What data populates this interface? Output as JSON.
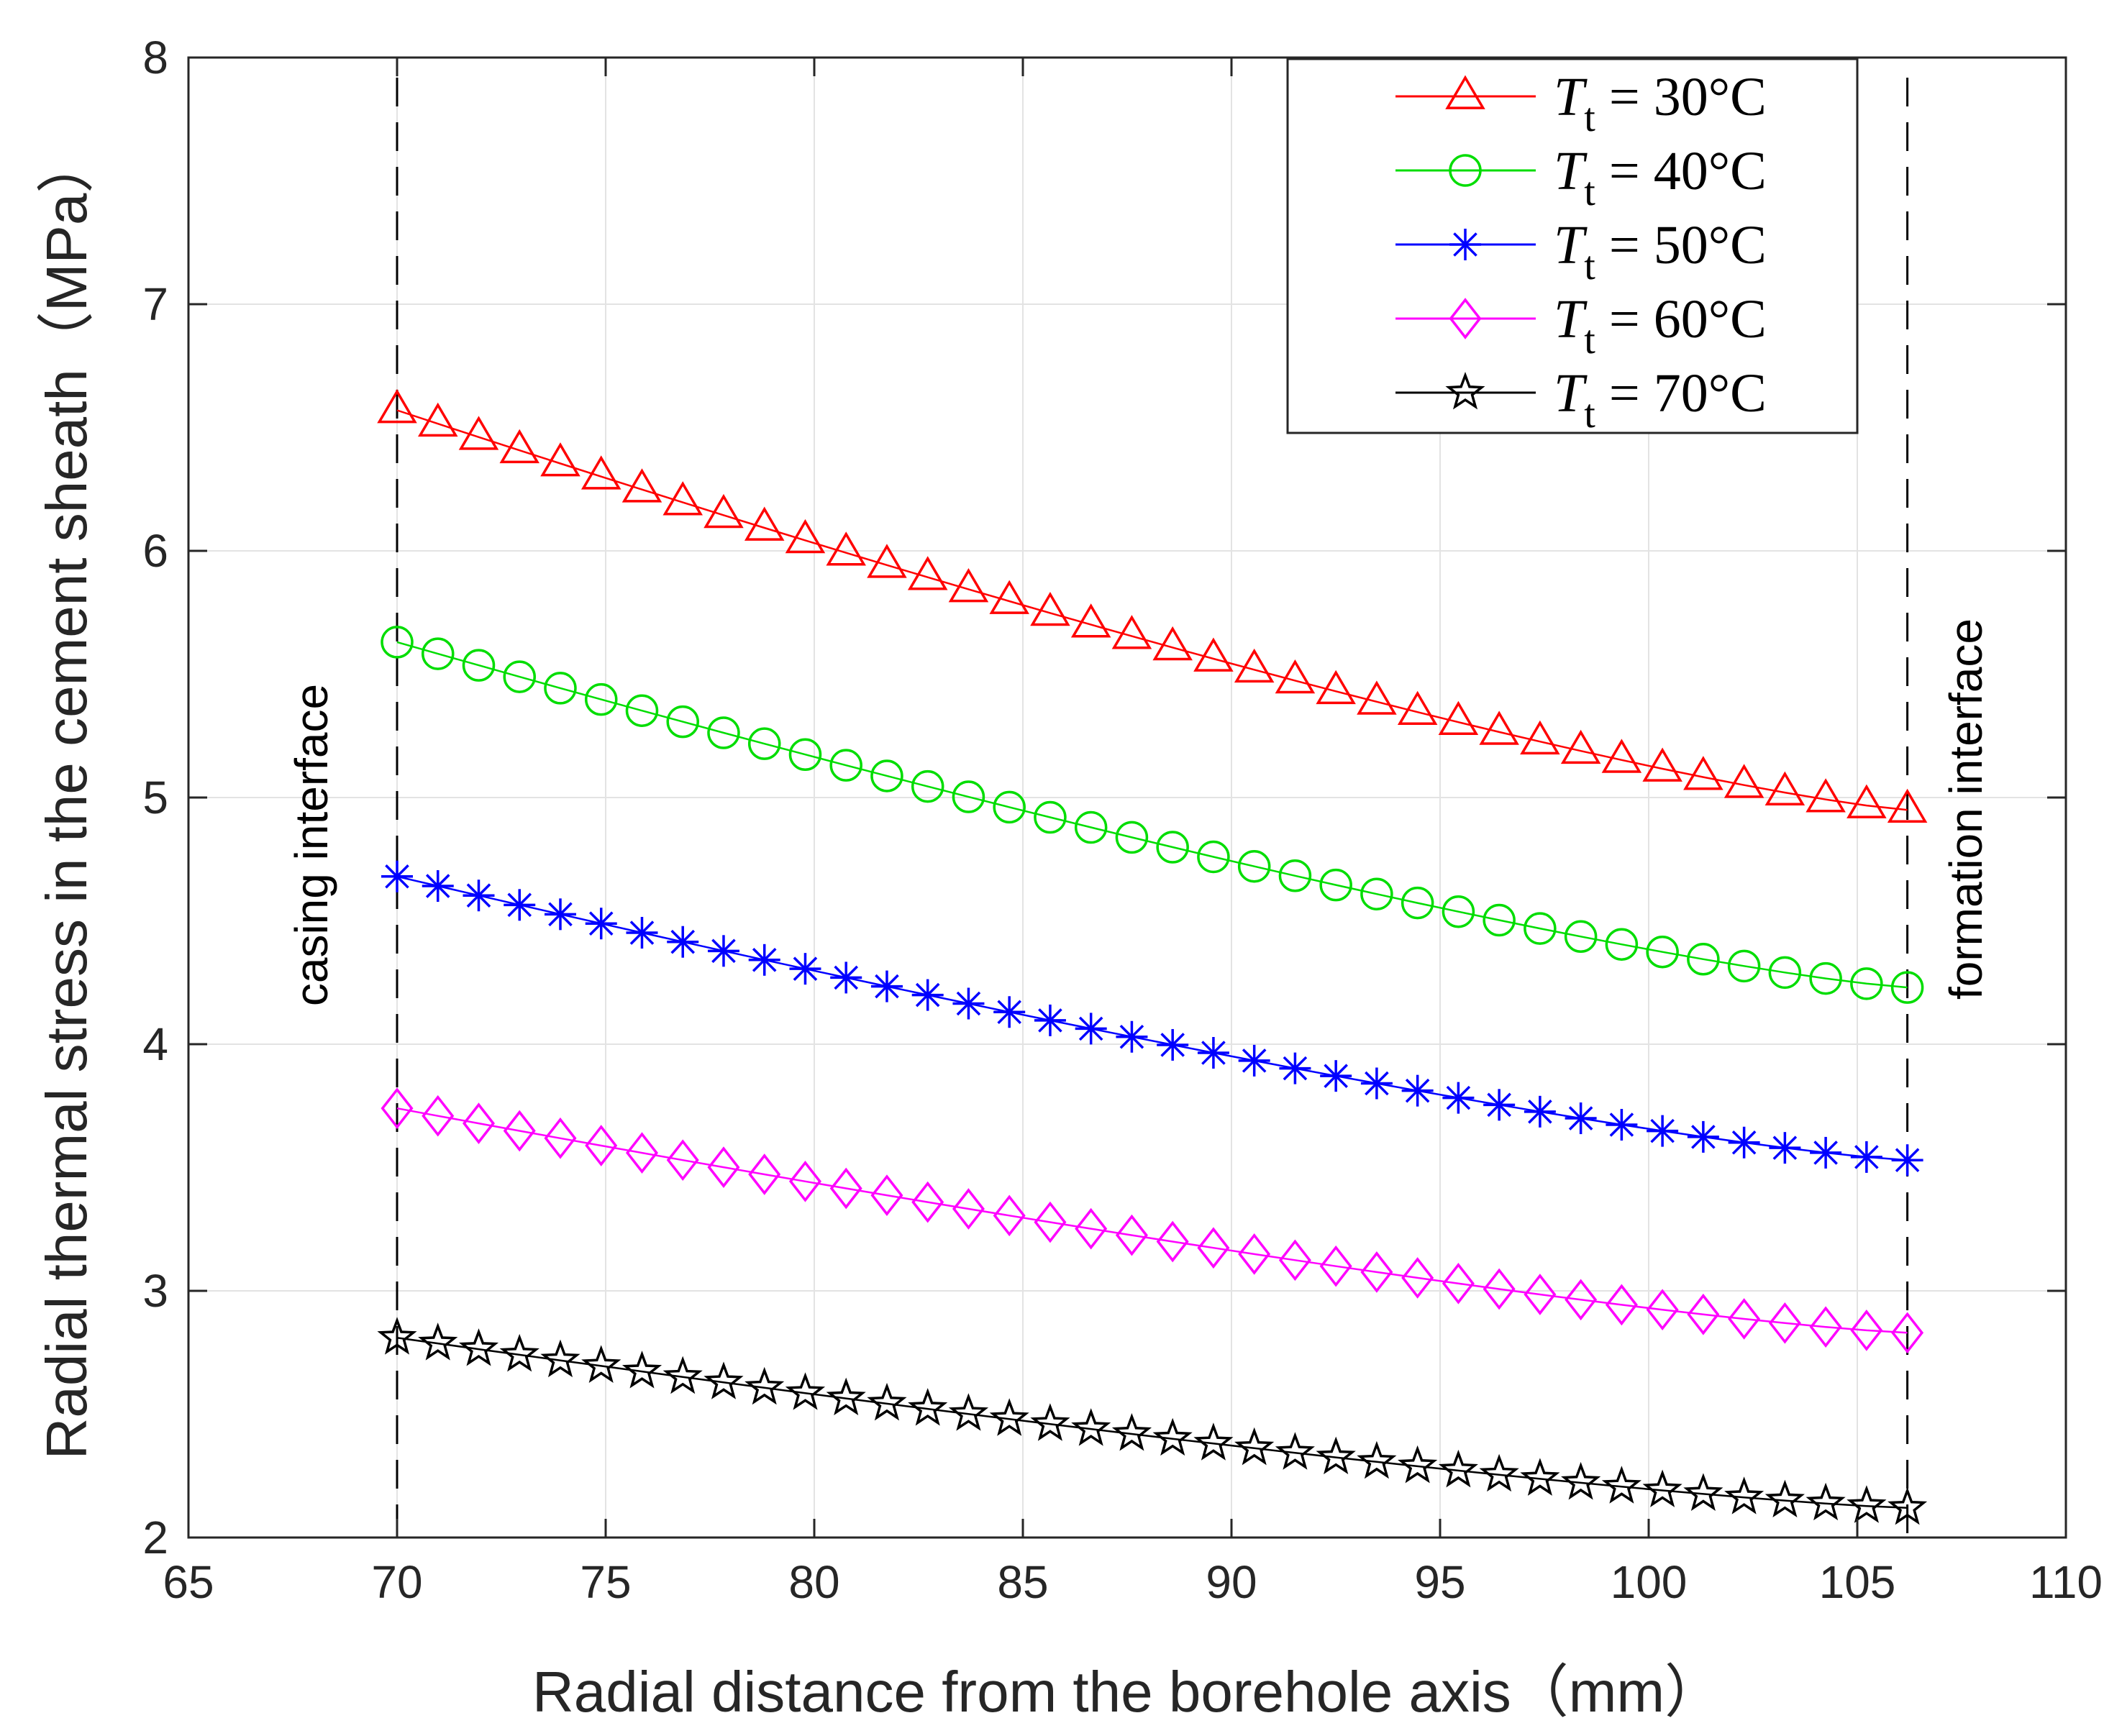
{
  "chart_data": {
    "type": "line",
    "title": "",
    "xlabel": "Radial distance from the borehole axis（mm）",
    "ylabel": "Radial thermal stress in the cement sheath（MPa）",
    "xlim": [
      65,
      110
    ],
    "ylim": [
      2,
      8
    ],
    "xticks": [
      65,
      70,
      75,
      80,
      85,
      90,
      95,
      100,
      105,
      110
    ],
    "yticks": [
      2,
      3,
      4,
      5,
      6,
      7,
      8
    ],
    "xtick_labels": [
      "65",
      "70",
      "75",
      "80",
      "85",
      "90",
      "95",
      "100",
      "105",
      "110"
    ],
    "ytick_labels": [
      "2",
      "3",
      "4",
      "5",
      "6",
      "7",
      "8"
    ],
    "grid": true,
    "legend_position": "top-right",
    "x_start": 70,
    "x_end": 106.2,
    "n_points": 38,
    "series": [
      {
        "name": "T_t = 30°C",
        "legend_var": "T",
        "legend_sub": "t",
        "legend_rest": " = 30°C",
        "color": "#ff0000",
        "marker": "triangle",
        "start": 6.57,
        "end": 4.95
      },
      {
        "name": "T_t = 40°C",
        "legend_var": "T",
        "legend_sub": "t",
        "legend_rest": " = 40°C",
        "color": "#00dd00",
        "marker": "circle",
        "start": 5.63,
        "end": 4.23
      },
      {
        "name": "T_t = 50°C",
        "legend_var": "T",
        "legend_sub": "t",
        "legend_rest": " = 50°C",
        "color": "#0000ff",
        "marker": "asterisk",
        "start": 4.68,
        "end": 3.53
      },
      {
        "name": "T_t = 60°C",
        "legend_var": "T",
        "legend_sub": "t",
        "legend_rest": " = 60°C",
        "color": "#ff00ff",
        "marker": "diamond",
        "start": 3.74,
        "end": 2.83
      },
      {
        "name": "T_t = 70°C",
        "legend_var": "T",
        "legend_sub": "t",
        "legend_rest": " = 70°C",
        "color": "#000000",
        "marker": "star",
        "start": 2.81,
        "end": 2.12
      }
    ],
    "annotations": [
      {
        "text": "casing interface",
        "x": 70
      },
      {
        "text": "formation interface",
        "x": 106.2
      }
    ]
  }
}
